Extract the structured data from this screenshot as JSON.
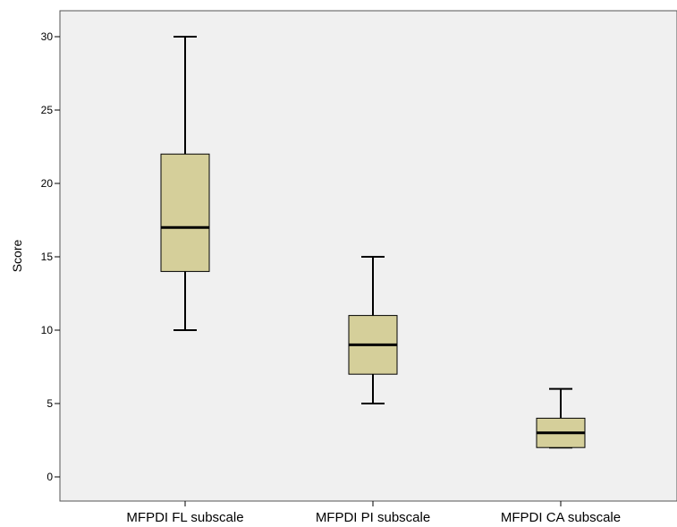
{
  "chart_data": {
    "type": "box",
    "ylabel": "Score",
    "xlabel": "",
    "ylim": [
      -1,
      32
    ],
    "yticks": [
      0,
      5,
      10,
      15,
      20,
      25,
      30
    ],
    "grid": false,
    "categories": [
      "MFPDI FL subscale",
      "MFPDI PI subscale",
      "MFPDI CA subscale"
    ],
    "boxes": [
      {
        "category": "MFPDI FL subscale",
        "min": 10,
        "q1": 14,
        "median": 17,
        "q3": 22,
        "max": 30
      },
      {
        "category": "MFPDI PI subscale",
        "min": 5,
        "q1": 7,
        "median": 9,
        "q3": 11,
        "max": 15
      },
      {
        "category": "MFPDI CA subscale",
        "min": 2,
        "q1": 2,
        "median": 3,
        "q3": 4,
        "max": 6
      }
    ],
    "colors": {
      "box_fill": "#d5cf9a",
      "plot_bg": "#f0f0f0",
      "stroke": "#000000"
    }
  }
}
